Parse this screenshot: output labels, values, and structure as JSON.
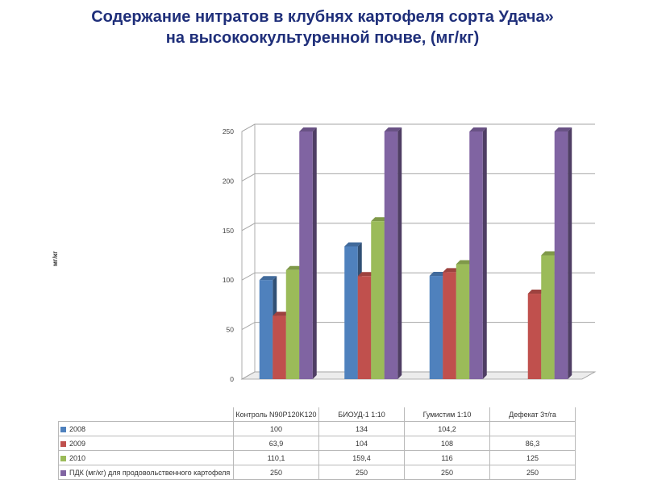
{
  "page": {
    "title_line1": "Содержание нитратов в клубнях картофеля сорта  Удача»",
    "title_line2": "на высокоокультуренной почве, (мг/кг)"
  },
  "chart_data": {
    "type": "bar",
    "title": "Содержание нитратов в клубнях картофеля сорта  Удача» на высокоокультуренной почве, (мг/кг)",
    "ylabel": "мг/кг",
    "ylim": [
      0,
      250
    ],
    "yticks": [
      "0",
      "50",
      "100",
      "150",
      "200",
      "250"
    ],
    "categories": [
      "Контроль N90P120K120",
      "БИОУД-1 1:10",
      "Гумистим 1:10",
      "Дефекат 3т/га"
    ],
    "category_cells": [
      "Контроль N90P120K120",
      "БИОУД-1 1:10",
      "Гумистим 1:10",
      "Дефекат 3т/га"
    ],
    "series": [
      {
        "name": "2008",
        "color": "#4f81bd",
        "values": [
          100,
          134,
          104.2,
          null
        ],
        "labels": [
          "100",
          "134",
          "104,2",
          ""
        ]
      },
      {
        "name": "2009",
        "color": "#c0504d",
        "values": [
          63.9,
          104,
          108,
          86.3
        ],
        "labels": [
          "63,9",
          "104",
          "108",
          "86,3"
        ]
      },
      {
        "name": "2010",
        "color": "#9bbb59",
        "values": [
          110.1,
          159.4,
          116,
          125
        ],
        "labels": [
          "110,1",
          "159,4",
          "116",
          "125"
        ]
      },
      {
        "name": "ПДК (мг/кг) для продовольственного картофеля",
        "color": "#8064a2",
        "values": [
          250,
          250,
          250,
          250
        ],
        "labels": [
          "250",
          "250",
          "250",
          "250"
        ]
      }
    ],
    "grid": true,
    "legend": "data table"
  }
}
